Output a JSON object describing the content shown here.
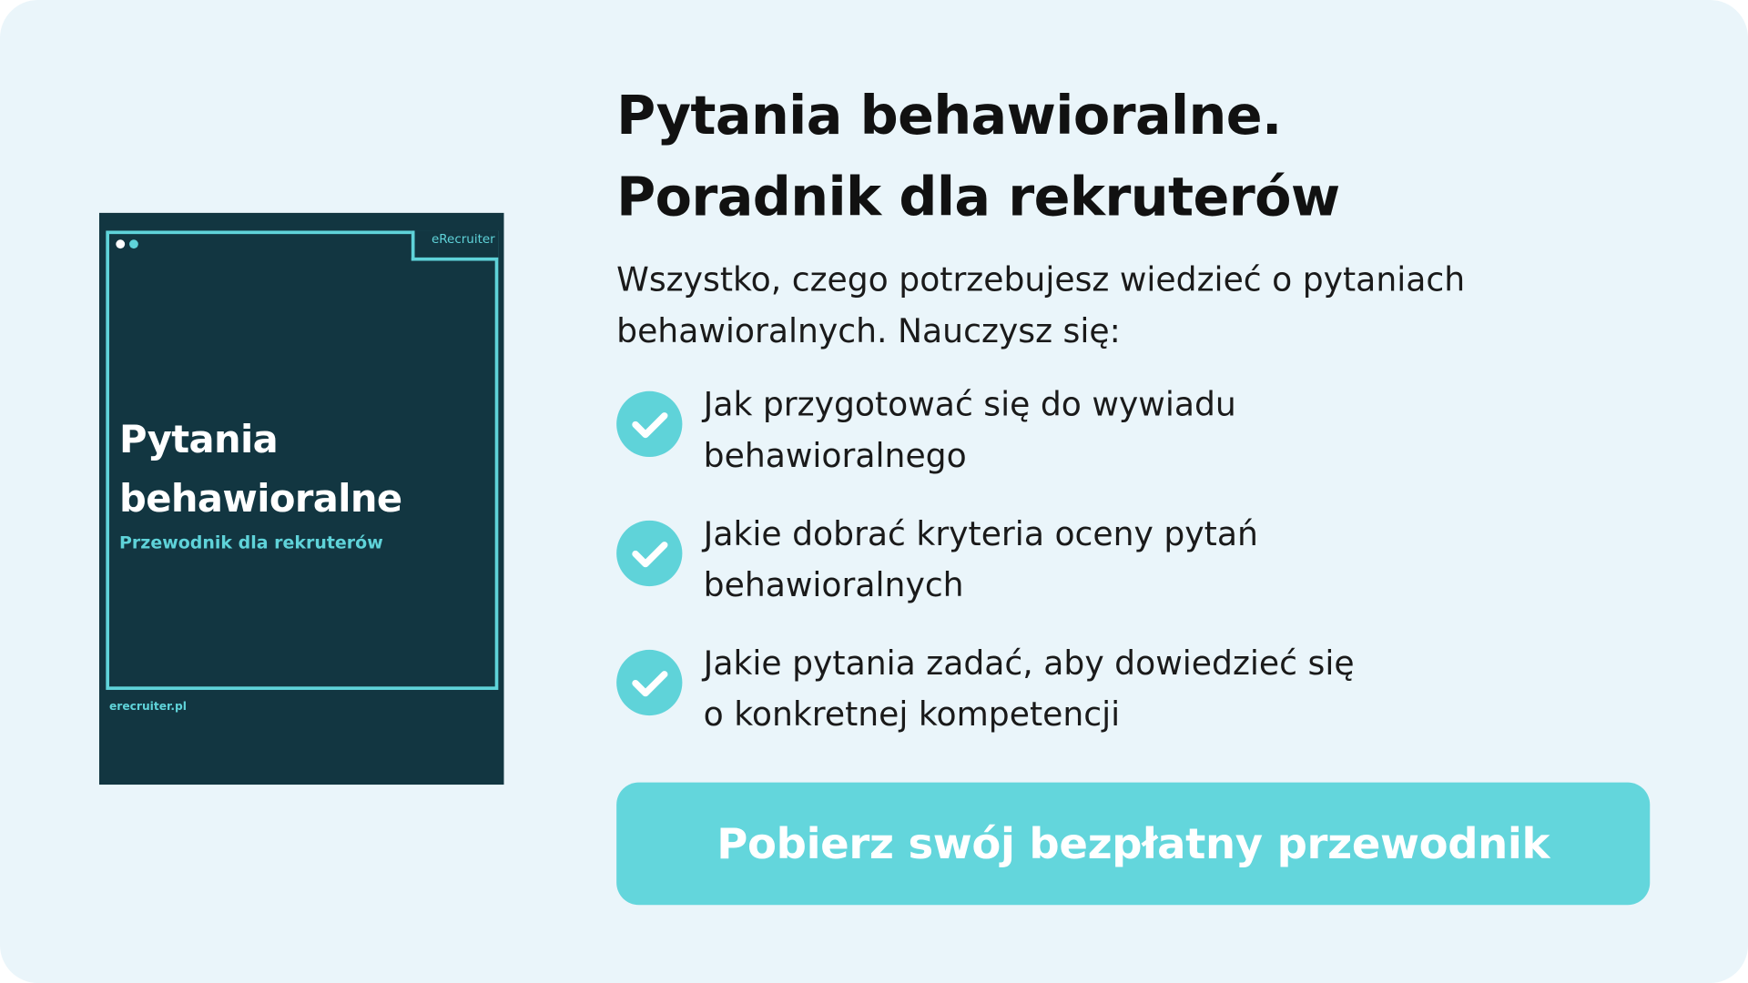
{
  "colors": {
    "background": "#eaf5fa",
    "accent": "#5fd3d9",
    "cover": "#123641",
    "text": "#111111"
  },
  "cover": {
    "brand": "eRecruiter",
    "title_line1": "Pytania",
    "title_line2": "behawioralne",
    "subtitle": "Przewodnik dla rekruterów",
    "url": "erecruiter.pl"
  },
  "heading": {
    "line1": "Pytania behawioralne.",
    "line2": "Poradnik dla rekruterów"
  },
  "intro": "Wszystko, czego potrzebujesz wiedzieć o pytaniach behawioralnych. Nauczysz się:",
  "items": [
    {
      "icon": "check-circle-icon",
      "line1": "Jak przygotować się do wywiadu",
      "line2": "behawioralnego"
    },
    {
      "icon": "check-circle-icon",
      "line1": "Jakie dobrać kryteria oceny pytań",
      "line2": "behawioralnych"
    },
    {
      "icon": "check-circle-icon",
      "line1": "Jakie pytania zadać, aby dowiedzieć się",
      "line2": "o konkretnej kompetencji"
    }
  ],
  "cta": {
    "label": "Pobierz swój bezpłatny przewodnik"
  }
}
